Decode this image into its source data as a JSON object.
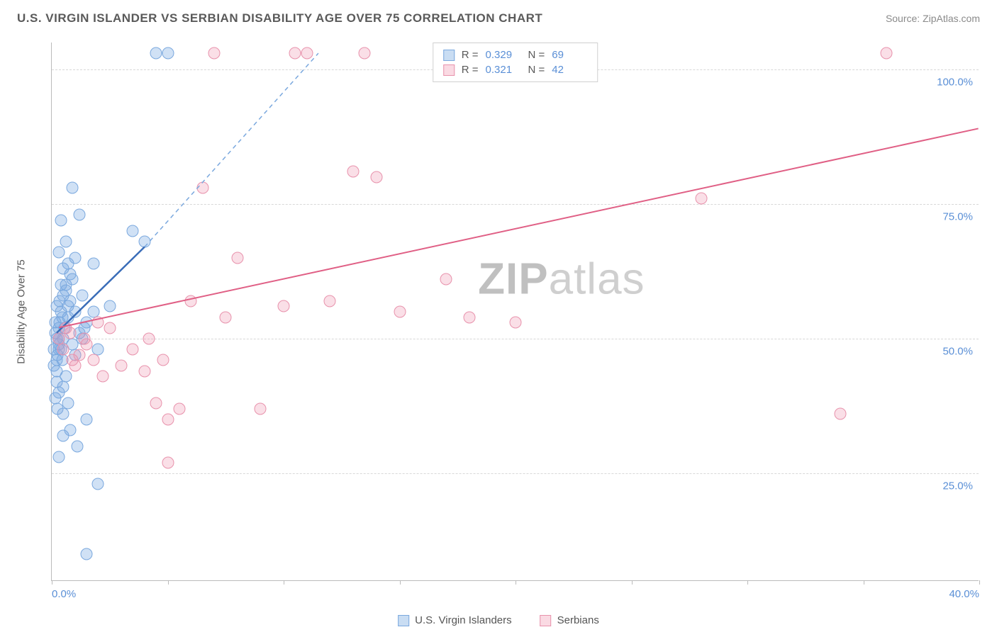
{
  "header": {
    "title": "U.S. VIRGIN ISLANDER VS SERBIAN DISABILITY AGE OVER 75 CORRELATION CHART",
    "source": "Source: ZipAtlas.com"
  },
  "watermark": {
    "zip": "ZIP",
    "atlas": "atlas"
  },
  "chart": {
    "type": "scatter",
    "ylabel": "Disability Age Over 75",
    "xlim": [
      0,
      40
    ],
    "ylim": [
      5,
      105
    ],
    "xticks": [
      0,
      5,
      10,
      15,
      20,
      25,
      30,
      35,
      40
    ],
    "xtick_labels_shown": {
      "0": "0.0%",
      "40": "40.0%"
    },
    "yticks": [
      25,
      50,
      75,
      100
    ],
    "ytick_labels": [
      "25.0%",
      "50.0%",
      "75.0%",
      "100.0%"
    ],
    "background_color": "#ffffff",
    "grid_color": "#d8d8d8",
    "axis_color": "#bbbbbb",
    "label_color": "#5a8fd6",
    "marker_size": 17,
    "series": [
      {
        "name": "U.S. Virgin Islanders",
        "color_fill": "rgba(120,170,225,0.35)",
        "color_stroke": "#7aa8de",
        "R": 0.329,
        "N": 69,
        "points": [
          [
            0.2,
            50
          ],
          [
            0.3,
            52
          ],
          [
            0.1,
            48
          ],
          [
            0.4,
            55
          ],
          [
            0.2,
            46
          ],
          [
            0.5,
            58
          ],
          [
            0.3,
            49
          ],
          [
            0.15,
            51
          ],
          [
            0.25,
            47
          ],
          [
            0.6,
            60
          ],
          [
            0.35,
            53
          ],
          [
            0.1,
            45
          ],
          [
            0.45,
            54
          ],
          [
            0.2,
            44
          ],
          [
            0.7,
            56
          ],
          [
            0.3,
            50
          ],
          [
            0.55,
            52
          ],
          [
            0.4,
            48
          ],
          [
            0.8,
            57
          ],
          [
            1.2,
            51
          ],
          [
            0.9,
            49
          ],
          [
            1.5,
            53
          ],
          [
            1.0,
            47
          ],
          [
            1.8,
            55
          ],
          [
            0.6,
            43
          ],
          [
            0.5,
            41
          ],
          [
            2.0,
            48
          ],
          [
            1.3,
            50
          ],
          [
            2.5,
            56
          ],
          [
            0.7,
            64
          ],
          [
            0.8,
            62
          ],
          [
            1.0,
            65
          ],
          [
            0.4,
            72
          ],
          [
            0.6,
            68
          ],
          [
            0.3,
            66
          ],
          [
            0.9,
            78
          ],
          [
            1.2,
            73
          ],
          [
            0.5,
            36
          ],
          [
            0.7,
            38
          ],
          [
            1.5,
            35
          ],
          [
            2.0,
            23
          ],
          [
            4.0,
            68
          ],
          [
            3.5,
            70
          ],
          [
            4.5,
            103
          ],
          [
            5.0,
            103
          ],
          [
            0.2,
            42
          ],
          [
            0.3,
            40
          ],
          [
            0.15,
            39
          ],
          [
            0.25,
            37
          ],
          [
            0.8,
            33
          ],
          [
            1.1,
            30
          ],
          [
            0.4,
            60
          ],
          [
            0.6,
            59
          ],
          [
            0.9,
            61
          ],
          [
            1.3,
            58
          ],
          [
            0.5,
            63
          ],
          [
            0.7,
            54
          ],
          [
            1.0,
            55
          ],
          [
            1.4,
            52
          ],
          [
            0.2,
            56
          ],
          [
            0.35,
            57
          ],
          [
            0.15,
            53
          ],
          [
            0.5,
            50
          ],
          [
            0.3,
            48
          ],
          [
            0.45,
            46
          ],
          [
            1.5,
            10
          ],
          [
            0.3,
            28
          ],
          [
            0.5,
            32
          ],
          [
            1.8,
            64
          ]
        ],
        "trend_line": {
          "x1": 0.2,
          "y1": 51,
          "x2": 4.0,
          "y2": 67,
          "color": "#3a6db8",
          "width": 2.5,
          "dash": "none"
        },
        "trend_dashed": {
          "x1": 4.0,
          "y1": 67,
          "x2": 11.5,
          "y2": 103,
          "color": "#7aa8de",
          "width": 1.5,
          "dash": "6,5"
        }
      },
      {
        "name": "Serbians",
        "color_fill": "rgba(240,150,175,0.3)",
        "color_stroke": "#e892ac",
        "R": 0.321,
        "N": 42,
        "points": [
          [
            0.3,
            50
          ],
          [
            0.5,
            48
          ],
          [
            0.8,
            51
          ],
          [
            1.2,
            47
          ],
          [
            1.5,
            49
          ],
          [
            2.0,
            53
          ],
          [
            2.5,
            52
          ],
          [
            3.0,
            45
          ],
          [
            3.5,
            48
          ],
          [
            4.0,
            44
          ],
          [
            4.5,
            38
          ],
          [
            5.0,
            35
          ],
          [
            5.5,
            37
          ],
          [
            6.0,
            57
          ],
          [
            6.5,
            78
          ],
          [
            7.0,
            103
          ],
          [
            7.5,
            54
          ],
          [
            8.0,
            65
          ],
          [
            9.0,
            37
          ],
          [
            10.0,
            56
          ],
          [
            10.5,
            103
          ],
          [
            11.0,
            103
          ],
          [
            12.0,
            57
          ],
          [
            13.0,
            81
          ],
          [
            13.5,
            103
          ],
          [
            14.0,
            80
          ],
          [
            15.0,
            55
          ],
          [
            17.0,
            61
          ],
          [
            18.0,
            54
          ],
          [
            20.0,
            53
          ],
          [
            28.0,
            76
          ],
          [
            34.0,
            36
          ],
          [
            36.0,
            103
          ],
          [
            5.0,
            27
          ],
          [
            1.0,
            45
          ],
          [
            1.8,
            46
          ],
          [
            2.2,
            43
          ],
          [
            0.6,
            52
          ],
          [
            0.9,
            46
          ],
          [
            1.4,
            50
          ],
          [
            4.2,
            50
          ],
          [
            4.8,
            46
          ]
        ],
        "trend_line": {
          "x1": 0.3,
          "y1": 52,
          "x2": 40,
          "y2": 89,
          "color": "#e05f85",
          "width": 2,
          "dash": "none"
        }
      }
    ]
  },
  "stats_legend": {
    "rows": [
      {
        "swatch": "blue",
        "R_label": "R =",
        "R": "0.329",
        "N_label": "N =",
        "N": "69"
      },
      {
        "swatch": "pink",
        "R_label": "R =",
        "R": "0.321",
        "N_label": "N =",
        "N": "42"
      }
    ]
  },
  "bottom_legend": {
    "items": [
      {
        "swatch": "blue",
        "label": "U.S. Virgin Islanders"
      },
      {
        "swatch": "pink",
        "label": "Serbians"
      }
    ]
  }
}
